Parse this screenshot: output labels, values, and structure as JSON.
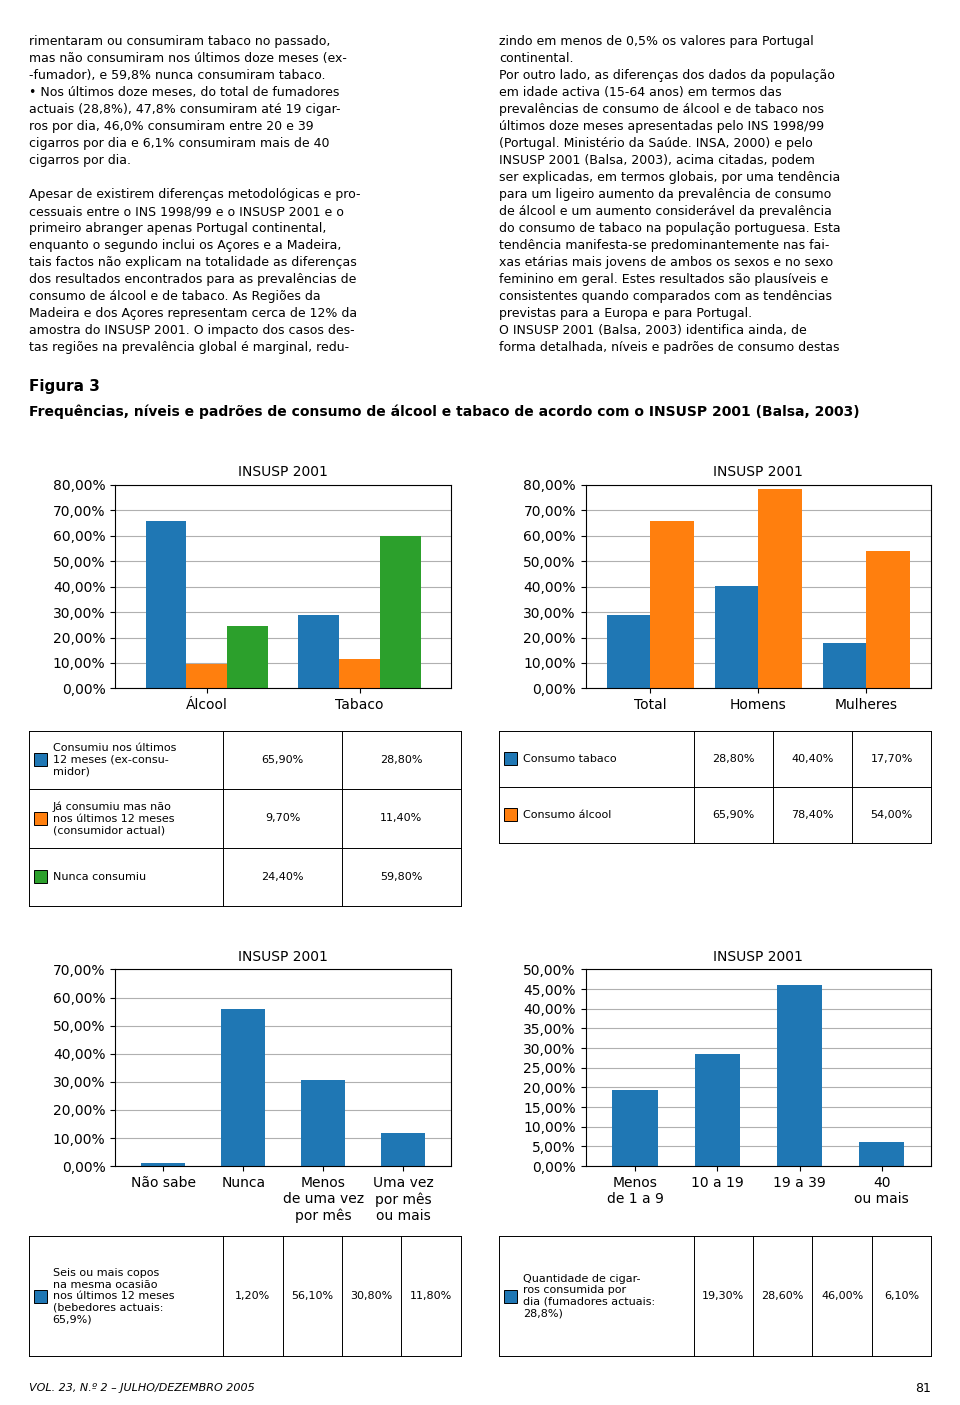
{
  "title": "Figura 3",
  "subtitle": "Frequências, níveis e padrões de consumo de álcool e tabaco de acordo com o INSUSP 2001 (Balsa, 2003)",
  "annotations": [
    "rimentaram ou consumiram tabaco no passado,\nmas não consumiram nos últimos doze meses (ex-\n-fumador), e 59,8% nunca consumiram tabaco.\n• Nos últimos doze meses, do total de fumadores\nactuais (28,8%), 47,8% consumiram até 19 cigar-\nros por dia, 46,0% consumiram entre 20 e 39\ncigarros por dia e 6,1% consumiram mais de 40\ncigarros por dia.\n\nApesar de existirem diferenças metodológicas e pro-\ncessuais entre o INS 1998/99 e o INSUSP 2001 e o\nprimeiro abranger apenas Portugal continental,\nenquanto o segundo inclui os Açores e a Madeira,\ntais factos não explicam na totalidade as diferenças\ndos resultados encontrados para as prevalências de\nconsumo de álcool e de tabaco. As Regiões da\nMadeira e dos Açores representam cerca de 12% da\namostra do INSUSP 2001. O impacto dos casos des-\ntas regiões na prevalência global é marginal, redu-",
    "zindo em menos de 0,5% os valores para Portugal\ncontinental.\nPor outro lado, as diferenças dos dados da população\nem idade activa (15-64 anos) em termos das\nprevalências de consumo de álcool e de tabaco nos\núltimos doze meses apresentadas pelo INS 1998/99\n(Portugal. Ministério da Saúde. INSA, 2000) e pelo\nINSUSP 2001 (Balsa, 2003), acima citadas, podem\nser explicadas, em termos globais, por uma tendência\npara um ligeiro aumento da prevalência de consumo\nde álcool e um aumento considerável da prevalência\ndo consumo de tabaco na população portuguesa. Esta\ntendência manifesta-se predominantemente nas fai-\nxas etárias mais jovens de ambos os sexos e no sexo\nfeminino em geral. Estes resultados são plausíveis e\nconsistentes quando comparados com as tendências\nprevistas para a Europa e para Portugal.\nO INSUSP 2001 (Balsa, 2003) identifica ainda, de\nforma detalhada, níveis e padrões de consumo destas",
    "VOL. 23, N.º 2 – JULHO/DEZEMBRO 2005",
    "81"
  ],
  "chart_data": [
    {
      "type": "bar",
      "title": "INSUSP 2001",
      "categories": [
        "Álcool",
        "Tabaco"
      ],
      "series": [
        {
          "name": "Consumiu nos últimos\n12 meses (ex-consu-\nmidor)",
          "values": [
            65.9,
            28.8
          ],
          "value_labels": [
            "65,90%",
            "28,80%"
          ]
        },
        {
          "name": "Já consumiu mas não\nnos últimos 12 meses\n(consumidor actual)",
          "values": [
            9.7,
            11.4
          ],
          "value_labels": [
            "9,70%",
            "11,40%"
          ]
        },
        {
          "name": "Nunca consumiu",
          "values": [
            24.4,
            59.8
          ],
          "value_labels": [
            "24,40%",
            "59,80%"
          ]
        }
      ],
      "ylim": [
        0,
        80
      ],
      "yticks": [
        {
          "value": 0,
          "label": "0,00%"
        },
        {
          "value": 10,
          "label": "10,00%"
        },
        {
          "value": 20,
          "label": "20,00%"
        },
        {
          "value": 30,
          "label": "30,00%"
        },
        {
          "value": 40,
          "label": "40,00%"
        },
        {
          "value": 50,
          "label": "50,00%"
        },
        {
          "value": 60,
          "label": "60,00%"
        },
        {
          "value": 70,
          "label": "70,00%"
        },
        {
          "value": 80,
          "label": "80,00%"
        }
      ],
      "grid": true
    },
    {
      "type": "bar",
      "title": "INSUSP 2001",
      "categories": [
        "Total",
        "Homens",
        "Mulheres"
      ],
      "series": [
        {
          "name": "Consumo tabaco",
          "values": [
            28.8,
            40.4,
            17.7
          ],
          "value_labels": [
            "28,80%",
            "40,40%",
            "17,70%"
          ]
        },
        {
          "name": "Consumo álcool",
          "values": [
            65.9,
            78.4,
            54.0
          ],
          "value_labels": [
            "65,90%",
            "78,40%",
            "54,00%"
          ]
        }
      ],
      "ylim": [
        0,
        80
      ],
      "yticks": [
        {
          "value": 0,
          "label": "0,00%"
        },
        {
          "value": 10,
          "label": "10,00%"
        },
        {
          "value": 20,
          "label": "20,00%"
        },
        {
          "value": 30,
          "label": "30,00%"
        },
        {
          "value": 40,
          "label": "40,00%"
        },
        {
          "value": 50,
          "label": "50,00%"
        },
        {
          "value": 60,
          "label": "60,00%"
        },
        {
          "value": 70,
          "label": "70,00%"
        },
        {
          "value": 80,
          "label": "80,00%"
        }
      ],
      "grid": true
    },
    {
      "type": "bar",
      "title": "INSUSP 2001",
      "categories": [
        "Não sabe",
        "Nunca",
        "Menos\nde uma vez\npor mês",
        "Uma vez\npor mês\nou mais"
      ],
      "series": [
        {
          "name": "Seis ou mais copos\nna mesma ocasião\nnos últimos 12 meses\n(bebedores actuais:\n65,9%)",
          "values": [
            1.2,
            56.1,
            30.8,
            11.8
          ],
          "value_labels": [
            "1,20%",
            "56,10%",
            "30,80%",
            "11,80%"
          ]
        }
      ],
      "ylim": [
        0,
        70
      ],
      "yticks": [
        {
          "value": 0,
          "label": "0,00%"
        },
        {
          "value": 10,
          "label": "10,00%"
        },
        {
          "value": 20,
          "label": "20,00%"
        },
        {
          "value": 30,
          "label": "30,00%"
        },
        {
          "value": 40,
          "label": "40,00%"
        },
        {
          "value": 50,
          "label": "50,00%"
        },
        {
          "value": 60,
          "label": "60,00%"
        },
        {
          "value": 70,
          "label": "70,00%"
        }
      ],
      "grid": true
    },
    {
      "type": "bar",
      "title": "INSUSP 2001",
      "categories": [
        "Menos\nde 1 a 9",
        "10 a 19",
        "19 a 39",
        "40\nou mais"
      ],
      "series": [
        {
          "name": "Quantidade de cigar-\nros consumida por\ndia (fumadores actuais:\n28,8%)",
          "values": [
            19.3,
            28.6,
            46.0,
            6.1
          ],
          "value_labels": [
            "19,30%",
            "28,60%",
            "46,00%",
            "6,10%"
          ]
        }
      ],
      "ylim": [
        0,
        50
      ],
      "yticks": [
        {
          "value": 0,
          "label": "0,00%"
        },
        {
          "value": 5,
          "label": "5,00%"
        },
        {
          "value": 10,
          "label": "10,00%"
        },
        {
          "value": 15,
          "label": "15,00%"
        },
        {
          "value": 20,
          "label": "20,00%"
        },
        {
          "value": 25,
          "label": "25,00%"
        },
        {
          "value": 30,
          "label": "30,00%"
        },
        {
          "value": 35,
          "label": "35,00%"
        },
        {
          "value": 40,
          "label": "40,00%"
        },
        {
          "value": 45,
          "label": "45,00%"
        },
        {
          "value": 50,
          "label": "50,00%"
        }
      ],
      "grid": true
    }
  ]
}
